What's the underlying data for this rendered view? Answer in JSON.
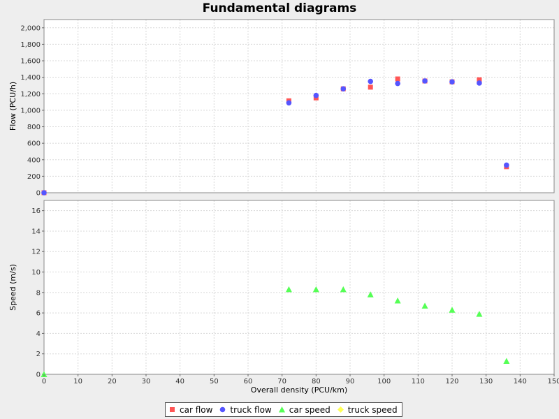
{
  "chart_data": {
    "title": "Fundamental diagrams",
    "xlabel": "Overall density (PCU/km)",
    "xlim": [
      0,
      150
    ],
    "xticks": [
      0,
      10,
      20,
      30,
      40,
      50,
      60,
      70,
      80,
      90,
      100,
      110,
      120,
      130,
      140,
      150
    ],
    "grid": true,
    "legend_position": "bottom",
    "subplots": [
      {
        "type": "scatter",
        "ylabel": "Flow (PCU/h)",
        "ylim": [
          0,
          2100
        ],
        "yticks": [
          0,
          200,
          400,
          600,
          800,
          1000,
          1200,
          1400,
          1600,
          1800,
          2000
        ],
        "ytick_labels": [
          "0",
          "200",
          "400",
          "600",
          "800",
          "1,000",
          "1,200",
          "1,400",
          "1,600",
          "1,800",
          "2,000"
        ],
        "series": [
          {
            "name": "car flow",
            "marker": "square",
            "color": "#ff5555",
            "x": [
              0,
              72,
              80,
              88,
              96,
              104,
              112,
              120,
              128,
              136
            ],
            "y": [
              0,
              1115,
              1150,
              1260,
              1280,
              1380,
              1355,
              1345,
              1370,
              315
            ]
          },
          {
            "name": "truck flow",
            "marker": "circle",
            "color": "#5555ff",
            "x": [
              0,
              72,
              80,
              88,
              96,
              104,
              112,
              120,
              128,
              136
            ],
            "y": [
              0,
              1090,
              1180,
              1260,
              1350,
              1325,
              1355,
              1345,
              1330,
              335
            ]
          }
        ]
      },
      {
        "type": "scatter",
        "ylabel": "Speed (m/s)",
        "ylim": [
          0,
          17
        ],
        "yticks": [
          0,
          2,
          4,
          6,
          8,
          10,
          12,
          14,
          16
        ],
        "ytick_labels": [
          "0",
          "2",
          "4",
          "6",
          "8",
          "10",
          "12",
          "14",
          "16"
        ],
        "series": [
          {
            "name": "car speed",
            "marker": "triangle",
            "color": "#55ff55",
            "x": [
              0,
              72,
              80,
              88,
              96,
              104,
              112,
              120,
              128,
              136
            ],
            "y": [
              0,
              8.3,
              8.3,
              8.3,
              7.8,
              7.2,
              6.7,
              6.3,
              5.9,
              1.3
            ]
          },
          {
            "name": "truck speed",
            "marker": "diamond",
            "color": "#ffff55",
            "x": [],
            "y": []
          }
        ]
      }
    ]
  }
}
